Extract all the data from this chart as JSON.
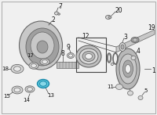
{
  "bg_color": "#f0f0f0",
  "border_color": "#aaaaaa",
  "fig_width": 2.0,
  "fig_height": 1.47,
  "dpi": 100,
  "highlight_color": "#5bc8dc",
  "highlight_edge": "#1a88aa",
  "highlight_inner": "#88d8e8",
  "part_color": "#d8d8d8",
  "part_edge": "#666666",
  "line_color": "#444444",
  "label_color": "#111111",
  "dark_part": "#b0b0b0",
  "housing_color": "#c8c8c8",
  "housing_dark": "#a0a0a0"
}
